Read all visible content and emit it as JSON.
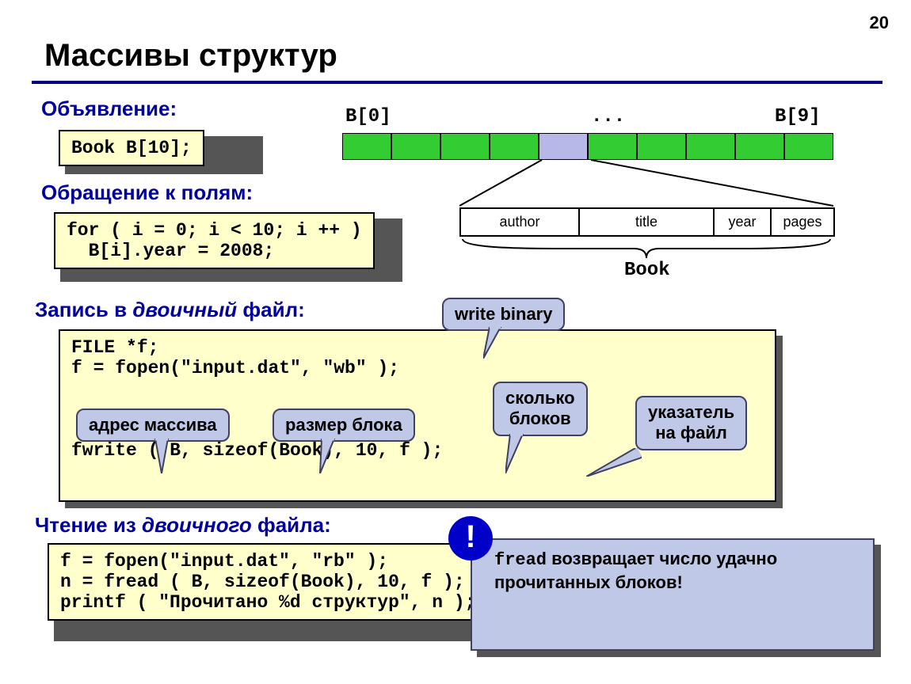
{
  "page_number": "20",
  "title": "Массивы структур",
  "sections": {
    "declaration": "Объявление:",
    "access": "Обращение к полям:",
    "write_prefix": "Запись в ",
    "write_italic": "двоичный",
    "write_suffix": " файл:",
    "read_prefix": "Чтение из ",
    "read_italic": "двоичного",
    "read_suffix": " файла:"
  },
  "code": {
    "decl": "Book B[10];",
    "access": "for ( i = 0; i < 10; i ++ )\n  B[i].year = 2008;",
    "write": "FILE *f;\nf = fopen(\"input.dat\", \"wb\" );\n\n\n\nfwrite ( B, sizeof(Book), 10, f );",
    "read": "f = fopen(\"input.dat\", \"rb\" );\nn = fread ( B, sizeof(Book), 10, f );\nprintf ( \"Прочитано %d структур\", n );"
  },
  "array": {
    "label_first": "B[0]",
    "label_dots": "...",
    "label_last": "B[9]",
    "cell_colors": [
      "#33cc33",
      "#33cc33",
      "#33cc33",
      "#33cc33",
      "#b8b8e8",
      "#33cc33",
      "#33cc33",
      "#33cc33",
      "#33cc33",
      "#33cc33"
    ],
    "struct_label": "Book",
    "fields": [
      "author",
      "title",
      "year",
      "pages"
    ],
    "field_widths": [
      150,
      170,
      72,
      80
    ]
  },
  "callouts": {
    "wb": "write binary",
    "addr": "адрес массива",
    "block": "размер блока",
    "count": "сколько\nблоков",
    "fp": "указатель\nна файл"
  },
  "note": {
    "bang": "!",
    "text_mono": "fread",
    "text_rest": " возвращает число удачно прочитанных блоков!"
  },
  "colors": {
    "rule": "#000080",
    "section": "#0000a0",
    "codebox_bg": "#ffffcc",
    "callout_bg": "#c0c8e8",
    "callout_border": "#404060",
    "shadow": "#555555",
    "green": "#33cc33",
    "highlight": "#b8b8e8"
  }
}
